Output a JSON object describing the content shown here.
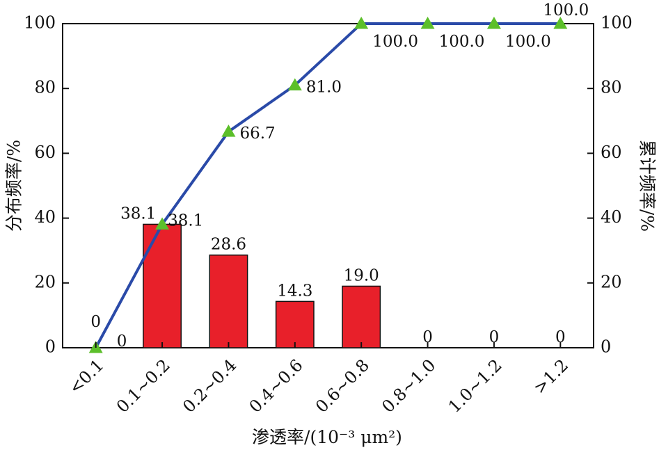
{
  "chart_data": {
    "type": "bar+line",
    "categories": [
      "<0.1",
      "0.1~0.2",
      "0.2~0.4",
      "0.4~0.6",
      "0.6~0.8",
      "0.8~1.0",
      "1.0~1.2",
      ">1.2"
    ],
    "series": [
      {
        "name": "分布频率",
        "type": "bar",
        "axis": "left",
        "values": [
          0,
          38.1,
          28.6,
          14.3,
          19.0,
          0,
          0,
          0
        ],
        "labels": [
          "0",
          "38.1",
          "28.6",
          "14.3",
          "19.0",
          "0",
          "0",
          "0"
        ],
        "color": "#e8202a"
      },
      {
        "name": "累计频率",
        "type": "line",
        "axis": "right",
        "values": [
          0,
          38.1,
          66.7,
          81.0,
          100.0,
          100.0,
          100.0,
          100.0
        ],
        "labels": [
          "0",
          "38.1",
          "66.7",
          "81.0",
          "100.0",
          "100.0",
          "100.0",
          "100.0"
        ],
        "color": "#2a4aa8",
        "marker_color": "#5cbf2a",
        "marker": "triangle"
      }
    ],
    "xlabel": "渗透率/(10⁻³ μm²)",
    "ylabel_left": "分布频率/%",
    "ylabel_right": "累计频率/%",
    "ylim": [
      0,
      100
    ],
    "yticks": [
      0,
      20,
      40,
      60,
      80,
      100
    ],
    "grid": false,
    "legend": "none"
  }
}
